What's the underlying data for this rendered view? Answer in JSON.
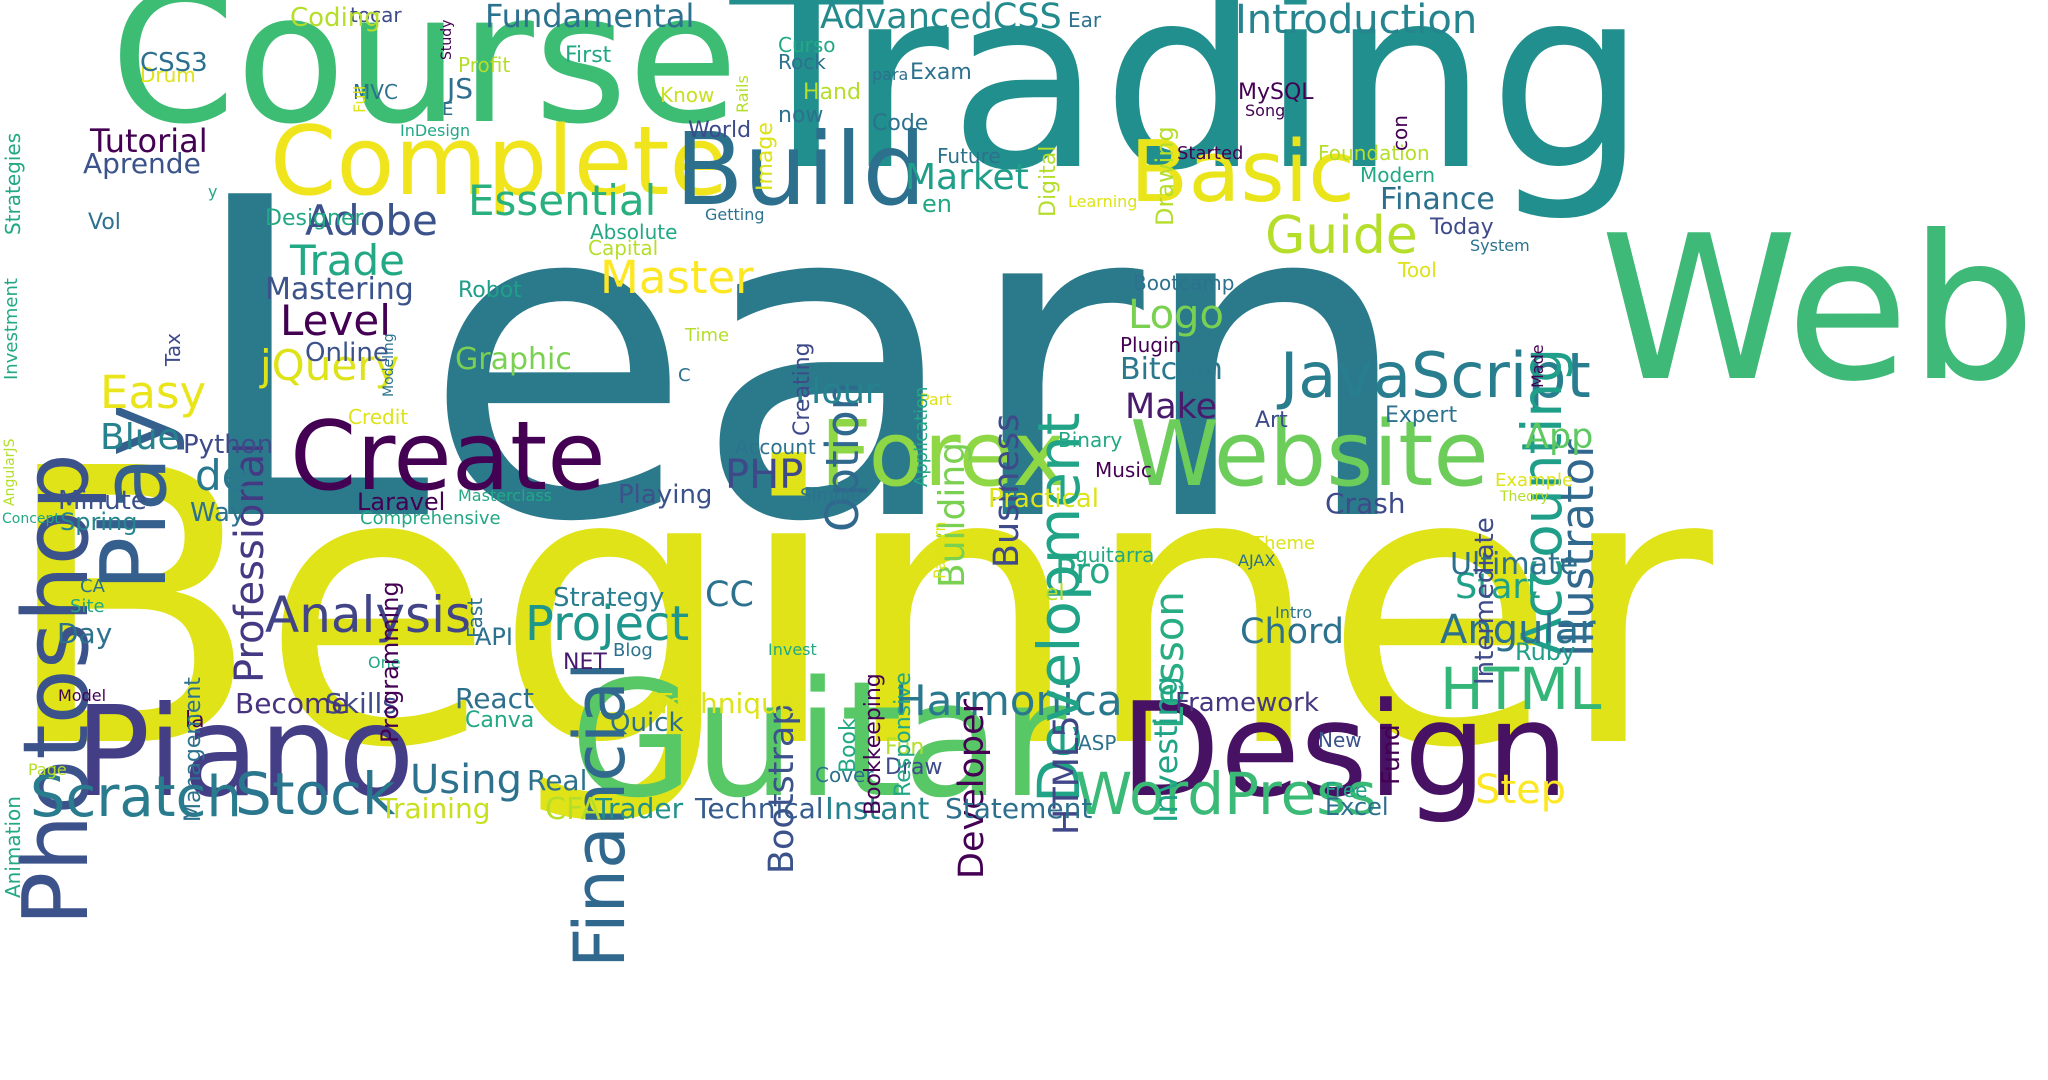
{
  "words": [
    {
      "text": "Learn",
      "color": "#2b7a8c"
    },
    {
      "text": "Beginner",
      "color": "#dfe318"
    },
    {
      "text": "Trading",
      "color": "#218f8d"
    },
    {
      "text": "Course",
      "color": "#3dbc74"
    },
    {
      "text": "Web",
      "color": "#3eb977"
    },
    {
      "text": "Guitar",
      "color": "#58c765"
    },
    {
      "text": "Design",
      "color": "#471164"
    },
    {
      "text": "Piano",
      "color": "#433e85"
    },
    {
      "text": "Complete",
      "color": "#f0e51c"
    },
    {
      "text": "Build",
      "color": "#2d708e"
    },
    {
      "text": "Basic",
      "color": "#eae51a"
    },
    {
      "text": "Website",
      "color": "#6ccd5a"
    },
    {
      "text": "Forex",
      "color": "#8fd744"
    },
    {
      "text": "Create",
      "color": "#440154"
    },
    {
      "text": "Photoshop",
      "color": "#3b528b"
    },
    {
      "text": "JavaScript",
      "color": "#287d8e"
    },
    {
      "text": "Play",
      "color": "#355f8d"
    },
    {
      "text": "Financial",
      "color": "#31688e"
    },
    {
      "text": "Scratch",
      "color": "#297b8e"
    },
    {
      "text": "Stock",
      "color": "#2a768e"
    },
    {
      "text": "WordPress",
      "color": "#3aba76"
    },
    {
      "text": "Harmonica",
      "color": "#2a788e"
    },
    {
      "text": "HTML",
      "color": "#34b679"
    },
    {
      "text": "Development",
      "color": "#20a386"
    },
    {
      "text": "Accounting",
      "color": "#1f9e89"
    },
    {
      "text": "Illustrator",
      "color": "#31688e"
    },
    {
      "text": "Analysis",
      "color": "#414487"
    },
    {
      "text": "Project",
      "color": "#1f968b"
    },
    {
      "text": "Master",
      "color": "#fde725"
    },
    {
      "text": "Guide",
      "color": "#b5de2b"
    },
    {
      "text": "Essential",
      "color": "#2ab07f"
    },
    {
      "text": "Adobe",
      "color": "#3b528b"
    },
    {
      "text": "Trade",
      "color": "#22a884"
    },
    {
      "text": "Level",
      "color": "#440154"
    },
    {
      "text": "jQuery",
      "color": "#dde318"
    },
    {
      "text": "Easy",
      "color": "#eae51a"
    },
    {
      "text": "Option",
      "color": "#31688e"
    },
    {
      "text": "Professional",
      "color": "#443983"
    },
    {
      "text": "Fundamental",
      "color": "#2c728e"
    },
    {
      "text": "AdvancedCSS",
      "color": "#238a8d"
    },
    {
      "text": "Introduction",
      "color": "#25848e"
    },
    {
      "text": "Market",
      "color": "#1f9e89"
    },
    {
      "text": "Logo",
      "color": "#7ad151"
    },
    {
      "text": "Business",
      "color": "#3e4a89"
    },
    {
      "text": "Building",
      "color": "#7ad151"
    },
    {
      "text": "Developer",
      "color": "#440154"
    },
    {
      "text": "Bootstrap",
      "color": "#3b528b"
    },
    {
      "text": "Lesson",
      "color": "#27ad81"
    },
    {
      "text": "Angular",
      "color": "#2c718e"
    },
    {
      "text": "Step",
      "color": "#fde725"
    },
    {
      "text": "Using",
      "color": "#2c728e"
    },
    {
      "text": "Hour",
      "color": "#26828e"
    },
    {
      "text": "PHP",
      "color": "#3e4989"
    },
    {
      "text": "de",
      "color": "#2a788e"
    },
    {
      "text": "Blue",
      "color": "#26828e"
    },
    {
      "text": "Make",
      "color": "#481b6d"
    },
    {
      "text": "Investing",
      "color": "#20a486"
    },
    {
      "text": "HTML5",
      "color": "#404688"
    },
    {
      "text": "App",
      "color": "#5ec962"
    },
    {
      "text": "Finance",
      "color": "#2d708e"
    },
    {
      "text": "Pro",
      "color": "#22a884"
    },
    {
      "text": "CC",
      "color": "#2c728e"
    },
    {
      "text": "Start",
      "color": "#1fa187"
    },
    {
      "text": "Chord",
      "color": "#2c728e"
    },
    {
      "text": "Graphic",
      "color": "#7ad151"
    },
    {
      "text": "Mastering",
      "color": "#3b528b"
    },
    {
      "text": "Bitcoin",
      "color": "#2a788e"
    },
    {
      "text": "Crash",
      "color": "#3e4a89"
    },
    {
      "text": "Ultimate",
      "color": "#2d708e"
    },
    {
      "text": "Technique",
      "color": "#dde318"
    },
    {
      "text": "Instant",
      "color": "#26828e"
    },
    {
      "text": "Training",
      "color": "#c8e020"
    },
    {
      "text": "Statement",
      "color": "#2d708e"
    },
    {
      "text": "Technical",
      "color": "#365c8d"
    },
    {
      "text": "Trader",
      "color": "#21918c"
    },
    {
      "text": "CFA",
      "color": "#b5de2b"
    },
    {
      "text": "Skills",
      "color": "#3e4a89"
    },
    {
      "text": "Become",
      "color": "#46327e"
    },
    {
      "text": "Real",
      "color": "#2c728e"
    },
    {
      "text": "React",
      "color": "#2d708e"
    },
    {
      "text": "Canva",
      "color": "#22a884"
    },
    {
      "text": "Quick",
      "color": "#2d708e"
    },
    {
      "text": "Excel",
      "color": "#2d708e"
    },
    {
      "text": "Framework",
      "color": "#453781"
    },
    {
      "text": "Ruby",
      "color": "#1f9e89"
    },
    {
      "text": "Tutorial",
      "color": "#440154"
    },
    {
      "text": "Aprende",
      "color": "#3b528b"
    },
    {
      "text": "Online",
      "color": "#3b528b"
    },
    {
      "text": "Robot",
      "color": "#1f9e89"
    },
    {
      "text": "Python",
      "color": "#3e4a89"
    },
    {
      "text": "Playing",
      "color": "#3b528b"
    },
    {
      "text": "Practical",
      "color": "#dde318"
    },
    {
      "text": "Laravel",
      "color": "#440154"
    },
    {
      "text": "Minute",
      "color": "#3b528b"
    },
    {
      "text": "Spring",
      "color": "#25848e"
    },
    {
      "text": "Way",
      "color": "#2c728e"
    },
    {
      "text": "Day",
      "color": "#2c728e"
    },
    {
      "text": "Strategy",
      "color": "#287d8e"
    },
    {
      "text": "API",
      "color": "#2c728e"
    },
    {
      "text": "NET",
      "color": "#481b6d"
    },
    {
      "text": "la",
      "color": "#440154"
    },
    {
      "text": "Cover",
      "color": "#2c728e"
    },
    {
      "text": "Draw",
      "color": "#3e4a89"
    },
    {
      "text": "Fun",
      "color": "#b5de2b"
    },
    {
      "text": "ASP",
      "color": "#2c728e"
    },
    {
      "text": "New",
      "color": "#3b528b"
    },
    {
      "text": "Free",
      "color": "#1fa187"
    },
    {
      "text": "Drum",
      "color": "#dde318"
    },
    {
      "text": "CSS3",
      "color": "#2d708e"
    },
    {
      "text": "tocar",
      "color": "#3e4a89"
    },
    {
      "text": "Coding",
      "color": "#b5de2b"
    },
    {
      "text": "JS",
      "color": "#2d708e"
    },
    {
      "text": "Profit",
      "color": "#b5de2b"
    },
    {
      "text": "First",
      "color": "#22a884"
    },
    {
      "text": "Know",
      "color": "#c8e020"
    },
    {
      "text": "World",
      "color": "#3e4a89"
    },
    {
      "text": "Curso",
      "color": "#22a884"
    },
    {
      "text": "Rock",
      "color": "#2c728e"
    },
    {
      "text": "Hand",
      "color": "#b5de2b"
    },
    {
      "text": "now",
      "color": "#2c728e"
    },
    {
      "text": "para",
      "color": "#2d708e"
    },
    {
      "text": "Exam",
      "color": "#2c728e"
    },
    {
      "text": "Code",
      "color": "#2c728e"
    },
    {
      "text": "MySQL",
      "color": "#440154"
    },
    {
      "text": "Song",
      "color": "#440154"
    },
    {
      "text": "Ear",
      "color": "#2c728e"
    },
    {
      "text": "Future",
      "color": "#2c728e"
    },
    {
      "text": "Started",
      "color": "#440154"
    },
    {
      "text": "Foundation",
      "color": "#b5de2b"
    },
    {
      "text": "Modern",
      "color": "#22a884"
    },
    {
      "text": "en",
      "color": "#22a884"
    },
    {
      "text": "Learning",
      "color": "#dde318"
    },
    {
      "text": "Getting",
      "color": "#2c728e"
    },
    {
      "text": "Absolute",
      "color": "#22a884"
    },
    {
      "text": "Capital",
      "color": "#b5de2b"
    },
    {
      "text": "Today",
      "color": "#3e4a89"
    },
    {
      "text": "System",
      "color": "#2c728e"
    },
    {
      "text": "Tool",
      "color": "#dde318"
    },
    {
      "text": "Bootcamp",
      "color": "#2c728e"
    },
    {
      "text": "Plugin",
      "color": "#440154"
    },
    {
      "text": "Designer",
      "color": "#22a884"
    },
    {
      "text": "Vol",
      "color": "#2c728e"
    },
    {
      "text": "y",
      "color": "#22a884"
    },
    {
      "text": "InDesign",
      "color": "#22a884"
    },
    {
      "text": "MVC",
      "color": "#2c728e"
    },
    {
      "text": "E",
      "color": "#2c728e"
    },
    {
      "text": "Time",
      "color": "#b5de2b"
    },
    {
      "text": "C",
      "color": "#2c728e"
    },
    {
      "text": "Binary",
      "color": "#22a884"
    },
    {
      "text": "Music",
      "color": "#440154"
    },
    {
      "text": "Art",
      "color": "#3e4a89"
    },
    {
      "text": "Expert",
      "color": "#2c728e"
    },
    {
      "text": "Part",
      "color": "#dde318"
    },
    {
      "text": "Credit",
      "color": "#dde318"
    },
    {
      "text": "Example",
      "color": "#dde318"
    },
    {
      "text": "Theory",
      "color": "#b5de2b"
    },
    {
      "text": "Account",
      "color": "#2c728e"
    },
    {
      "text": "Simple",
      "color": "#2c728e"
    },
    {
      "text": "Masterclass",
      "color": "#22a884"
    },
    {
      "text": "Comprehensive",
      "color": "#22a884"
    },
    {
      "text": "Concept",
      "color": "#22a884"
    },
    {
      "text": "CA",
      "color": "#2c728e"
    },
    {
      "text": "Site",
      "color": "#22a884"
    },
    {
      "text": "guitarra",
      "color": "#22a884"
    },
    {
      "text": "el",
      "color": "#b5de2b"
    },
    {
      "text": "Theme",
      "color": "#dde318"
    },
    {
      "text": "AJAX",
      "color": "#2c728e"
    },
    {
      "text": "Intro",
      "color": "#2c728e"
    },
    {
      "text": "Blog",
      "color": "#2c728e"
    },
    {
      "text": "Invest",
      "color": "#22a884"
    },
    {
      "text": "One",
      "color": "#22a884"
    },
    {
      "text": "Model",
      "color": "#440154"
    },
    {
      "text": "Page",
      "color": "#b5de2b"
    },
    {
      "text": "Study",
      "color": "#440154"
    },
    {
      "text": "Full",
      "color": "#dde318"
    },
    {
      "text": "Image",
      "color": "#dde318"
    },
    {
      "text": "Rails",
      "color": "#b5de2b"
    },
    {
      "text": "con",
      "color": "#440154"
    },
    {
      "text": "Digital",
      "color": "#b5de2b"
    },
    {
      "text": "Drawing",
      "color": "#b5de2b"
    },
    {
      "text": "Creating",
      "color": "#3e4a89"
    },
    {
      "text": "Application",
      "color": "#22a884"
    },
    {
      "text": "Modeling",
      "color": "#2c728e"
    },
    {
      "text": "Tax",
      "color": "#3e4a89"
    },
    {
      "text": "Investment",
      "color": "#22a884"
    },
    {
      "text": "Strategies",
      "color": "#22a884"
    },
    {
      "text": "AngularJS",
      "color": "#b5de2b"
    },
    {
      "text": "Animation",
      "color": "#22a884"
    },
    {
      "text": "Management",
      "color": "#2c728e"
    },
    {
      "text": "Programming",
      "color": "#440154"
    },
    {
      "text": "Fast",
      "color": "#2c728e"
    },
    {
      "text": "Book",
      "color": "#22a884"
    },
    {
      "text": "Bookkeeping",
      "color": "#440154"
    },
    {
      "text": "Responsive",
      "color": "#22a884"
    },
    {
      "text": "Pattern",
      "color": "#dde318"
    },
    {
      "text": "Fund",
      "color": "#440154"
    },
    {
      "text": "Intermediate",
      "color": "#3e4a89"
    },
    {
      "text": "Made",
      "color": "#440154"
    },
    {
      "text": "Django",
      "color": "#2c728e"
    }
  ]
}
